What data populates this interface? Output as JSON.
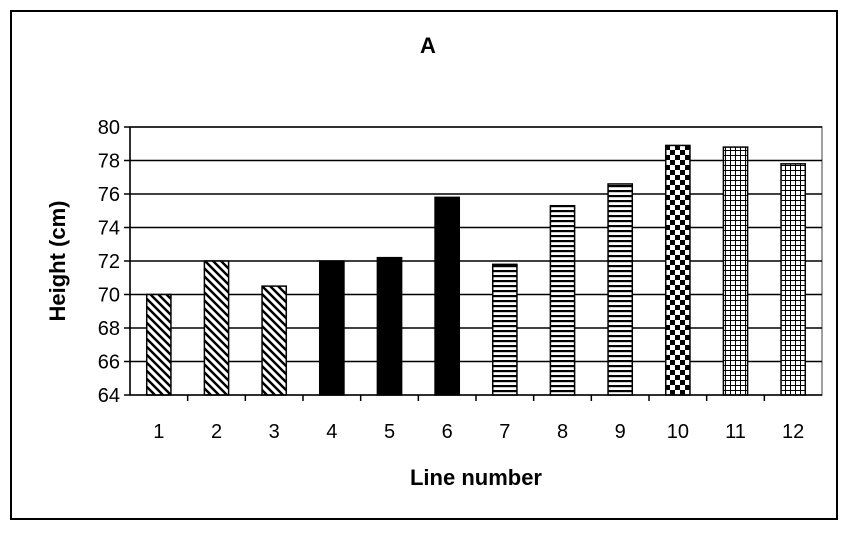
{
  "chart_data": {
    "type": "bar",
    "title": "A",
    "xlabel": "Line number",
    "ylabel": "Height (cm)",
    "categories": [
      "1",
      "2",
      "3",
      "4",
      "5",
      "6",
      "7",
      "8",
      "9",
      "10",
      "11",
      "12"
    ],
    "values": [
      70.0,
      72.0,
      70.5,
      72.0,
      72.2,
      75.8,
      71.8,
      75.3,
      76.6,
      78.9,
      78.8,
      77.8
    ],
    "patterns": [
      "diagonal",
      "diagonal",
      "diagonal",
      "solid",
      "solid",
      "solid",
      "horizontal",
      "horizontal",
      "horizontal",
      "checker",
      "grid",
      "grid"
    ],
    "ylim": [
      64,
      80
    ],
    "yticks": [
      "64",
      "66",
      "68",
      "70",
      "72",
      "74",
      "76",
      "78",
      "80"
    ],
    "grid": true,
    "legend": false,
    "colors": {
      "bar": "#000000",
      "fill": "#ffffff",
      "plot_background": "#ffffff",
      "axis": "#808080"
    }
  }
}
